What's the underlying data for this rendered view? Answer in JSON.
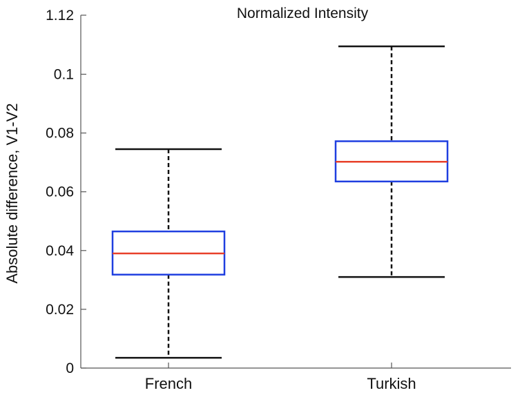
{
  "chart_data": {
    "type": "box",
    "title": "Normalized Intensity",
    "xlabel": "",
    "ylabel": "Absolute difference, V1-V2",
    "ylim": [
      0,
      1.12
    ],
    "yticks": [
      0,
      0.02,
      0.04,
      0.06,
      0.08,
      0.1,
      1.12
    ],
    "ytick_labels": [
      "0",
      "0.02",
      "0.04",
      "0.06",
      "0.08",
      "0.1",
      "1.12"
    ],
    "categories": [
      "French",
      "Turkish"
    ],
    "boxes": [
      {
        "category": "French",
        "whisker_low": 0.0035,
        "q1": 0.0318,
        "median": 0.039,
        "q3": 0.0465,
        "whisker_high": 0.0745
      },
      {
        "category": "Turkish",
        "whisker_low": 0.031,
        "q1": 0.0635,
        "median": 0.0702,
        "q3": 0.0772,
        "whisker_high": 0.1095
      }
    ],
    "grid": false,
    "colors": {
      "box": "#1f3fe0",
      "median": "#e8402a",
      "whisker": "#111111",
      "axis": "#555555"
    }
  }
}
